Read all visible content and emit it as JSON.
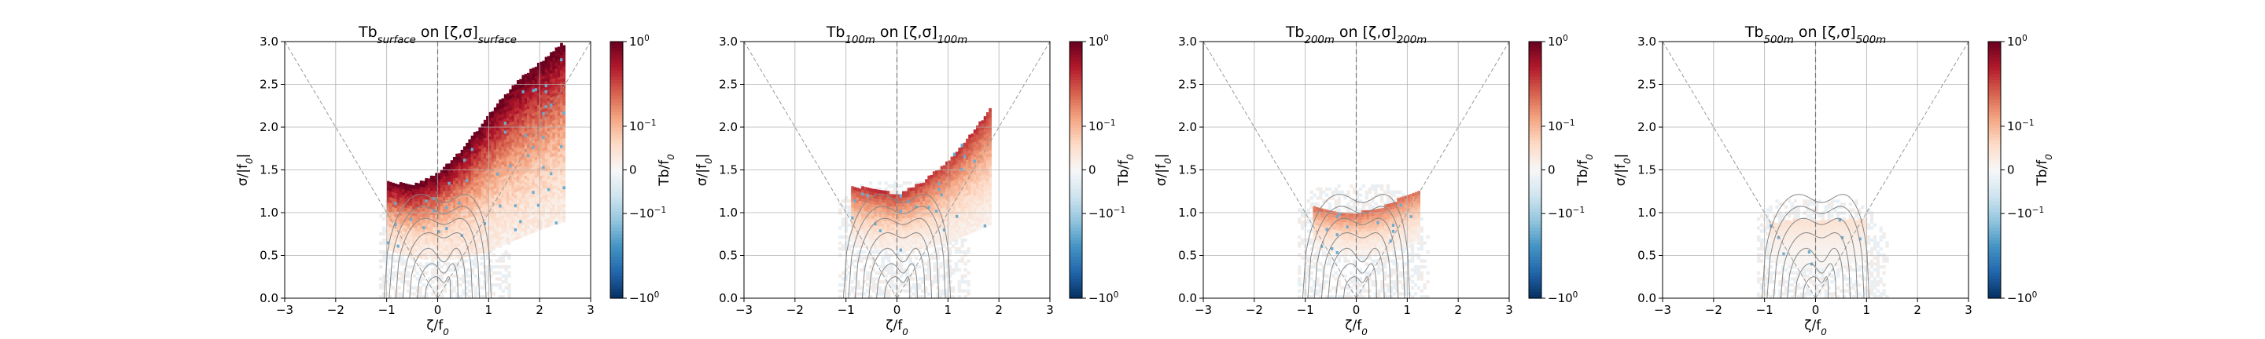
{
  "chart_data": [
    {
      "type": "heatmap",
      "title": {
        "main": "Tb",
        "main_sub": "surface",
        "mid": " on [ζ,σ]",
        "end_sub": "surface"
      },
      "xlabel": {
        "main": "ζ/f",
        "sub": "0"
      },
      "ylabel": {
        "main": "σ/|f",
        "sub": "0",
        "end": "|"
      },
      "xlim": [
        -3,
        3
      ],
      "ylim": [
        0,
        3
      ],
      "xticks": [
        "−3",
        "−2",
        "−1",
        "0",
        "1",
        "2",
        "3"
      ],
      "yticks": [
        "0.0",
        "0.5",
        "1.0",
        "1.5",
        "2.0",
        "2.5",
        "3.0"
      ],
      "grid": true,
      "colorbar": {
        "label": {
          "main": "Tb/f",
          "sub": "0"
        },
        "ticks": [
          "10",
          "10",
          "0",
          "−10",
          "−10"
        ],
        "tick_exps": [
          "0",
          "−1",
          "",
          "−1",
          "0"
        ],
        "scale": "symlog"
      },
      "signal": {
        "ymin_edge": 0.7,
        "ymax_curve": [
          [
            -1.0,
            1.35
          ],
          [
            -0.5,
            1.3
          ],
          [
            0.0,
            1.45
          ],
          [
            0.5,
            1.75
          ],
          [
            1.0,
            2.15
          ],
          [
            1.5,
            2.5
          ],
          [
            2.0,
            2.75
          ],
          [
            2.4,
            2.95
          ]
        ],
        "x_range": [
          -1.0,
          2.45
        ],
        "intensity": 1.0
      }
    },
    {
      "type": "heatmap",
      "title": {
        "main": "Tb",
        "main_sub": "100m",
        "mid": " on [ζ,σ]",
        "end_sub": "100m"
      },
      "xlabel": {
        "main": "ζ/f",
        "sub": "0"
      },
      "ylabel": {
        "main": "σ/|f",
        "sub": "0",
        "end": "|"
      },
      "xlim": [
        -3,
        3
      ],
      "ylim": [
        0,
        3
      ],
      "xticks": [
        "−3",
        "−2",
        "−1",
        "0",
        "1",
        "2",
        "3"
      ],
      "yticks": [
        "0.0",
        "0.5",
        "1.0",
        "1.5",
        "2.0",
        "2.5",
        "3.0"
      ],
      "grid": true,
      "colorbar": {
        "label": {
          "main": "Tb/f",
          "sub": "0"
        },
        "ticks": [
          "10",
          "10",
          "0",
          "−10",
          "−10"
        ],
        "tick_exps": [
          "0",
          "−1",
          "",
          "−1",
          "0"
        ],
        "scale": "symlog"
      },
      "signal": {
        "ymin_edge": 0.8,
        "ymax_curve": [
          [
            -0.9,
            1.3
          ],
          [
            -0.5,
            1.25
          ],
          [
            0.0,
            1.2
          ],
          [
            0.5,
            1.35
          ],
          [
            1.0,
            1.6
          ],
          [
            1.5,
            1.95
          ],
          [
            1.8,
            2.2
          ]
        ],
        "x_range": [
          -0.9,
          1.85
        ],
        "intensity": 0.7
      }
    },
    {
      "type": "heatmap",
      "title": {
        "main": "Tb",
        "main_sub": "200m",
        "mid": " on [ζ,σ]",
        "end_sub": "200m"
      },
      "xlabel": {
        "main": "ζ/f",
        "sub": "0"
      },
      "ylabel": {
        "main": "σ/|f",
        "sub": "0",
        "end": "|"
      },
      "xlim": [
        -3,
        3
      ],
      "ylim": [
        0,
        3
      ],
      "xticks": [
        "−3",
        "−2",
        "−1",
        "0",
        "1",
        "2",
        "3"
      ],
      "yticks": [
        "0.0",
        "0.5",
        "1.0",
        "1.5",
        "2.0",
        "2.5",
        "3.0"
      ],
      "grid": true,
      "colorbar": {
        "label": {
          "main": "Tb/f",
          "sub": "0"
        },
        "ticks": [
          "10",
          "10",
          "0",
          "−10",
          "−10"
        ],
        "tick_exps": [
          "0",
          "−1",
          "",
          "−1",
          "0"
        ],
        "scale": "symlog"
      },
      "signal": {
        "ymin_edge": 0.75,
        "ymax_curve": [
          [
            -0.8,
            1.05
          ],
          [
            -0.4,
            1.0
          ],
          [
            0.0,
            0.98
          ],
          [
            0.5,
            1.05
          ],
          [
            1.0,
            1.2
          ],
          [
            1.2,
            1.25
          ]
        ],
        "x_range": [
          -0.85,
          1.25
        ],
        "intensity": 0.55
      }
    },
    {
      "type": "heatmap",
      "title": {
        "main": "Tb",
        "main_sub": "500m",
        "mid": " on [ζ,σ]",
        "end_sub": "500m"
      },
      "xlabel": {
        "main": "ζ/f",
        "sub": "0"
      },
      "ylabel": {
        "main": "σ/|f",
        "sub": "0",
        "end": "|"
      },
      "xlim": [
        -3,
        3
      ],
      "ylim": [
        0,
        3
      ],
      "xticks": [
        "−3",
        "−2",
        "−1",
        "0",
        "1",
        "2",
        "3"
      ],
      "yticks": [
        "0.0",
        "0.5",
        "1.0",
        "1.5",
        "2.0",
        "2.5",
        "3.0"
      ],
      "grid": true,
      "colorbar": {
        "label": {
          "main": "Tb/f",
          "sub": "0"
        },
        "ticks": [
          "10",
          "10",
          "0",
          "−10",
          "−10"
        ],
        "tick_exps": [
          "0",
          "−1",
          "",
          "−1",
          "0"
        ],
        "scale": "symlog"
      },
      "signal": {
        "ymin_edge": 0.6,
        "ymax_curve": [
          [
            -0.9,
            0.85
          ],
          [
            -0.5,
            0.9
          ],
          [
            0.0,
            0.9
          ],
          [
            0.5,
            0.9
          ],
          [
            1.0,
            0.9
          ]
        ],
        "x_range": [
          -0.9,
          1.0
        ],
        "intensity": 0.15
      }
    }
  ],
  "colors": {
    "grid": "#b0b0b0",
    "diag": "#999999",
    "contour": "#888888",
    "zero_line": "#777777",
    "cmap": [
      "#053061",
      "#2166ac",
      "#4393c3",
      "#92c5de",
      "#d1e5f0",
      "#f7f7f7",
      "#fddbc7",
      "#f4a582",
      "#d6604d",
      "#b2182b",
      "#67001f"
    ]
  }
}
